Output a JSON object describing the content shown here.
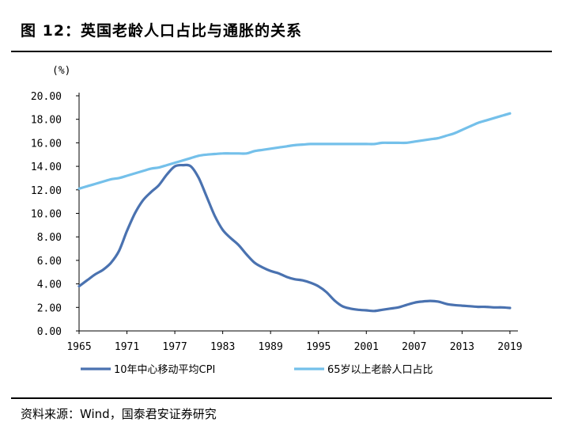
{
  "title": "图 12：英国老龄人口占比与通胀的关系",
  "source": "资料来源：Wind，国泰君安证券研究",
  "colors": {
    "cpi": "#4a72b0",
    "aging": "#74c0ea",
    "axis": "#000000"
  },
  "chart_data": {
    "type": "line",
    "ylabel": "(%)",
    "xlim": [
      1965,
      2020
    ],
    "ylim": [
      0,
      20
    ],
    "y_ticks": [
      "0.00",
      "2.00",
      "4.00",
      "6.00",
      "8.00",
      "10.00",
      "12.00",
      "14.00",
      "16.00",
      "18.00",
      "20.00"
    ],
    "x_ticks": [
      "1965",
      "1971",
      "1977",
      "1983",
      "1989",
      "1995",
      "2001",
      "2007",
      "2013",
      "2019"
    ],
    "legend_position": "bottom",
    "series": [
      {
        "name": "10年中心移动平均CPI",
        "color": "#4a72b0",
        "x": [
          1965,
          1966,
          1967,
          1968,
          1969,
          1970,
          1971,
          1972,
          1973,
          1974,
          1975,
          1976,
          1977,
          1978,
          1979,
          1980,
          1981,
          1982,
          1983,
          1984,
          1985,
          1986,
          1987,
          1988,
          1989,
          1990,
          1991,
          1992,
          1993,
          1994,
          1995,
          1996,
          1997,
          1998,
          1999,
          2000,
          2001,
          2002,
          2003,
          2004,
          2005,
          2006,
          2007,
          2008,
          2009,
          2010,
          2011,
          2012,
          2013,
          2014,
          2015,
          2016,
          2017,
          2018,
          2019
        ],
        "y": [
          3.8,
          4.3,
          4.8,
          5.2,
          5.8,
          6.8,
          8.5,
          10.0,
          11.1,
          11.8,
          12.4,
          13.3,
          14.0,
          14.1,
          14.0,
          13.0,
          11.4,
          9.8,
          8.6,
          7.9,
          7.3,
          6.5,
          5.8,
          5.4,
          5.1,
          4.9,
          4.6,
          4.4,
          4.3,
          4.1,
          3.8,
          3.3,
          2.6,
          2.1,
          1.9,
          1.8,
          1.75,
          1.7,
          1.8,
          1.9,
          2.0,
          2.2,
          2.4,
          2.5,
          2.55,
          2.5,
          2.3,
          2.2,
          2.15,
          2.1,
          2.05,
          2.05,
          2.0,
          2.0,
          1.95
        ]
      },
      {
        "name": "65岁以上老龄人口占比",
        "color": "#74c0ea",
        "x": [
          1965,
          1966,
          1967,
          1968,
          1969,
          1970,
          1971,
          1972,
          1973,
          1974,
          1975,
          1976,
          1977,
          1978,
          1979,
          1980,
          1981,
          1982,
          1983,
          1984,
          1985,
          1986,
          1987,
          1988,
          1989,
          1990,
          1991,
          1992,
          1993,
          1994,
          1995,
          1996,
          1997,
          1998,
          1999,
          2000,
          2001,
          2002,
          2003,
          2004,
          2005,
          2006,
          2007,
          2008,
          2009,
          2010,
          2011,
          2012,
          2013,
          2014,
          2015,
          2016,
          2017,
          2018,
          2019
        ],
        "y": [
          12.1,
          12.3,
          12.5,
          12.7,
          12.9,
          13.0,
          13.2,
          13.4,
          13.6,
          13.8,
          13.9,
          14.1,
          14.3,
          14.5,
          14.7,
          14.9,
          15.0,
          15.05,
          15.1,
          15.1,
          15.1,
          15.1,
          15.3,
          15.4,
          15.5,
          15.6,
          15.7,
          15.8,
          15.85,
          15.9,
          15.9,
          15.9,
          15.9,
          15.9,
          15.9,
          15.9,
          15.9,
          15.9,
          16.0,
          16.0,
          16.0,
          16.0,
          16.1,
          16.2,
          16.3,
          16.4,
          16.6,
          16.8,
          17.1,
          17.4,
          17.7,
          17.9,
          18.1,
          18.3,
          18.5
        ]
      }
    ]
  }
}
